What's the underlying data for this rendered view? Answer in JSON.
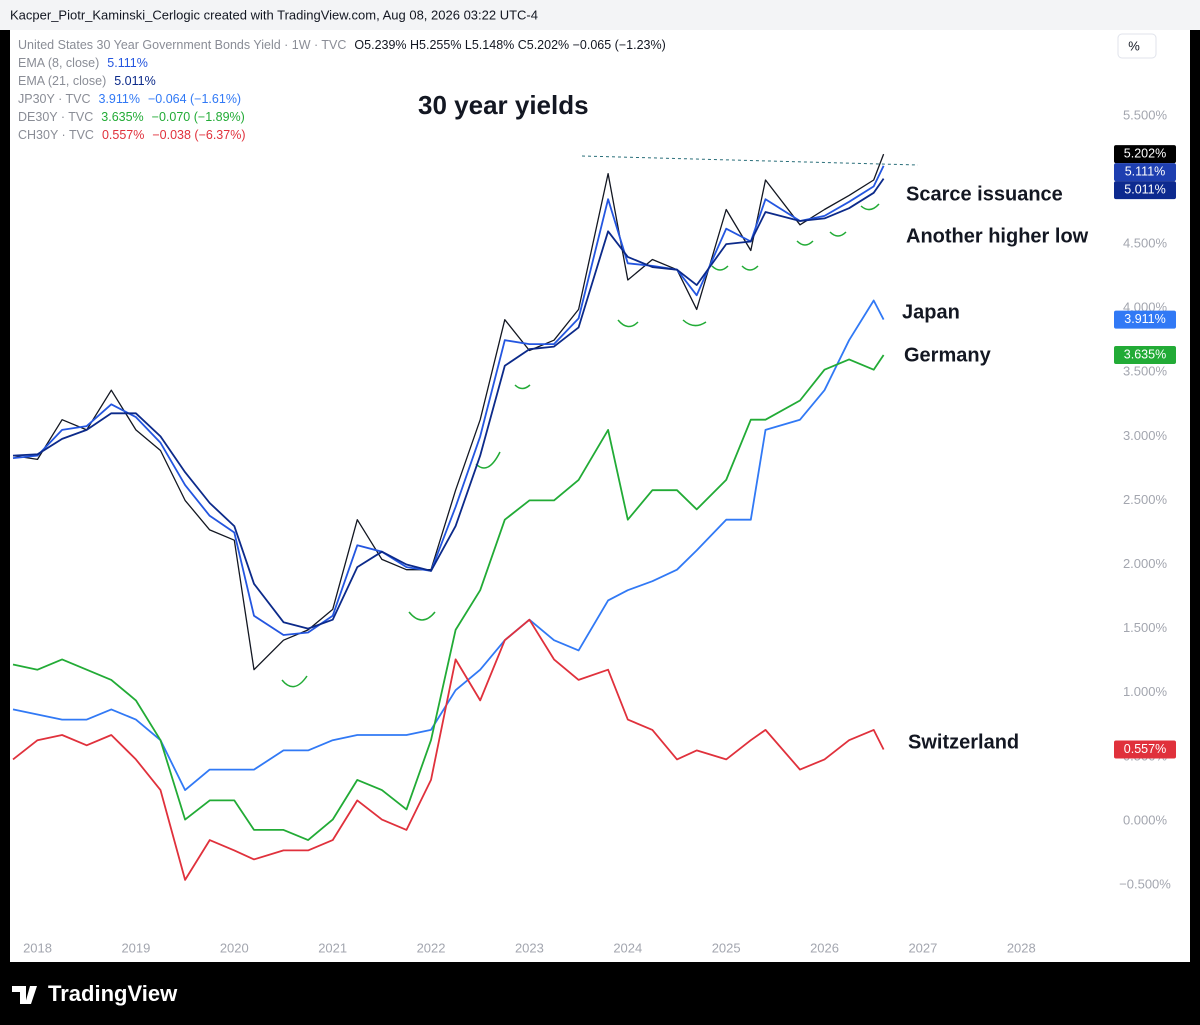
{
  "header": {
    "text": "Kacper_Piotr_Kaminski_Cerlogic created with TradingView.com, Aug 08, 2026 03:22 UTC-4"
  },
  "scale_button": "%",
  "footer": {
    "logo": "TradingView"
  },
  "chart_data": {
    "type": "line",
    "title": "30 year yields",
    "annotations": [
      "Scarce issuance",
      "Another higher low",
      "Japan",
      "Germany",
      "Switzerland"
    ],
    "x": [
      2017.75,
      2018.0,
      2018.25,
      2018.5,
      2018.75,
      2019.0,
      2019.25,
      2019.5,
      2019.75,
      2020.0,
      2020.2,
      2020.5,
      2020.75,
      2021.0,
      2021.25,
      2021.5,
      2021.75,
      2022.0,
      2022.25,
      2022.5,
      2022.75,
      2023.0,
      2023.25,
      2023.5,
      2023.8,
      2024.0,
      2024.25,
      2024.5,
      2024.7,
      2025.0,
      2025.25,
      2025.4,
      2025.75,
      2026.0,
      2026.25,
      2026.5,
      2026.6
    ],
    "xlim": [
      2017.72,
      2028.8
    ],
    "xticks": [
      2018,
      2019,
      2020,
      2021,
      2022,
      2023,
      2024,
      2025,
      2026,
      2027,
      2028
    ],
    "ylim": [
      -0.89,
      6.17
    ],
    "yticks": [
      {
        "value": -0.5,
        "label": "−0.500%"
      },
      {
        "value": 0,
        "label": "0.000%"
      },
      {
        "value": 0.5,
        "label": "0.500%"
      },
      {
        "value": 1,
        "label": "1.000%"
      },
      {
        "value": 1.5,
        "label": "1.500%"
      },
      {
        "value": 2,
        "label": "2.000%"
      },
      {
        "value": 2.5,
        "label": "2.500%"
      },
      {
        "value": 3,
        "label": "3.000%"
      },
      {
        "value": 3.5,
        "label": "3.500%"
      },
      {
        "value": 4,
        "label": "4.000%"
      },
      {
        "value": 4.5,
        "label": "4.500%"
      },
      {
        "value": 5.5,
        "label": "5.500%"
      }
    ],
    "grid": false,
    "series": [
      {
        "name": "United States 30 Year Government Bonds Yield · 1W · TVC",
        "color": "#131722",
        "badge_color": "#000000",
        "legend_detail": "O5.239%  H5.255%  L5.148%  C5.202%  −0.065 (−1.23%)",
        "values": [
          2.85,
          2.82,
          3.13,
          3.05,
          3.36,
          3.05,
          2.89,
          2.5,
          2.27,
          2.19,
          1.18,
          1.41,
          1.49,
          1.65,
          2.35,
          2.04,
          1.96,
          1.96,
          2.58,
          3.13,
          3.91,
          3.67,
          3.75,
          3.99,
          5.05,
          4.22,
          4.38,
          4.3,
          3.99,
          4.77,
          4.45,
          5.0,
          4.65,
          4.77,
          4.88,
          5.0,
          5.202
        ],
        "value_labels": [
          null,
          null,
          null,
          null,
          null,
          null,
          null,
          null,
          null,
          null,
          null,
          null,
          null,
          null,
          null,
          null,
          null,
          null,
          null,
          null,
          null,
          null,
          null,
          null,
          null,
          null,
          null,
          null,
          null,
          null,
          null,
          null,
          null,
          null,
          null,
          null,
          "5.202%"
        ]
      },
      {
        "name": "EMA (8, close)",
        "color": "#2456e0",
        "badge_color": "#1e3fb0",
        "values": [
          2.83,
          2.85,
          3.05,
          3.08,
          3.25,
          3.15,
          2.95,
          2.62,
          2.38,
          2.25,
          1.6,
          1.45,
          1.47,
          1.6,
          2.15,
          2.1,
          1.98,
          1.95,
          2.45,
          3.0,
          3.75,
          3.72,
          3.72,
          3.92,
          4.85,
          4.35,
          4.33,
          4.3,
          4.1,
          4.62,
          4.52,
          4.85,
          4.68,
          4.72,
          4.83,
          4.95,
          5.111
        ],
        "value_labels": [
          null,
          null,
          null,
          null,
          null,
          null,
          null,
          null,
          null,
          null,
          null,
          null,
          null,
          null,
          null,
          null,
          null,
          null,
          null,
          null,
          null,
          null,
          null,
          null,
          null,
          null,
          null,
          null,
          null,
          null,
          null,
          null,
          null,
          null,
          null,
          null,
          "5.111%"
        ]
      },
      {
        "name": "EMA (21, close)",
        "color": "#0c2a8a",
        "badge_color": "#0d2a8f",
        "values": [
          2.85,
          2.86,
          2.98,
          3.05,
          3.18,
          3.18,
          3.0,
          2.72,
          2.48,
          2.3,
          1.85,
          1.55,
          1.5,
          1.57,
          1.98,
          2.1,
          2.0,
          1.95,
          2.3,
          2.85,
          3.55,
          3.68,
          3.7,
          3.85,
          4.6,
          4.4,
          4.32,
          4.3,
          4.18,
          4.5,
          4.52,
          4.75,
          4.68,
          4.7,
          4.78,
          4.9,
          5.011
        ],
        "value_labels": [
          null,
          null,
          null,
          null,
          null,
          null,
          null,
          null,
          null,
          null,
          null,
          null,
          null,
          null,
          null,
          null,
          null,
          null,
          null,
          null,
          null,
          null,
          null,
          null,
          null,
          null,
          null,
          null,
          null,
          null,
          null,
          null,
          null,
          null,
          null,
          null,
          "5.011%"
        ]
      },
      {
        "name": "JP30Y · TVC",
        "color": "#3179f5",
        "badge_color": "#3179f5",
        "legend_detail": "−0.064 (−1.61%)",
        "values": [
          0.87,
          0.83,
          0.79,
          0.79,
          0.87,
          0.79,
          0.63,
          0.24,
          0.4,
          0.4,
          0.4,
          0.55,
          0.55,
          0.63,
          0.67,
          0.67,
          0.67,
          0.71,
          1.02,
          1.18,
          1.41,
          1.57,
          1.41,
          1.33,
          1.72,
          1.8,
          1.87,
          1.96,
          2.11,
          2.35,
          2.35,
          3.05,
          3.13,
          3.36,
          3.75,
          4.06,
          3.911
        ],
        "value_labels": [
          null,
          null,
          null,
          null,
          null,
          null,
          null,
          null,
          null,
          null,
          null,
          null,
          null,
          null,
          null,
          null,
          null,
          null,
          null,
          null,
          null,
          null,
          null,
          null,
          null,
          null,
          null,
          null,
          null,
          null,
          null,
          null,
          null,
          null,
          null,
          null,
          "3.911%"
        ]
      },
      {
        "name": "DE30Y · TVC",
        "color": "#22ab36",
        "badge_color": "#22ab36",
        "legend_detail": "−0.070 (−1.89%)",
        "values": [
          1.22,
          1.18,
          1.26,
          1.18,
          1.1,
          0.94,
          0.63,
          0.01,
          0.16,
          0.16,
          -0.07,
          -0.07,
          -0.15,
          0.01,
          0.32,
          0.24,
          0.09,
          0.63,
          1.49,
          1.8,
          2.35,
          2.5,
          2.5,
          2.66,
          3.05,
          2.35,
          2.58,
          2.58,
          2.43,
          2.66,
          3.13,
          3.13,
          3.28,
          3.52,
          3.6,
          3.52,
          3.635
        ],
        "value_labels": [
          null,
          null,
          null,
          null,
          null,
          null,
          null,
          null,
          null,
          null,
          null,
          null,
          null,
          null,
          null,
          null,
          null,
          null,
          null,
          null,
          null,
          null,
          null,
          null,
          null,
          null,
          null,
          null,
          null,
          null,
          null,
          null,
          null,
          null,
          null,
          null,
          "3.635%"
        ]
      },
      {
        "name": "CH30Y · TVC",
        "color": "#e0313c",
        "badge_color": "#e0313c",
        "legend_detail": "−0.038 (−6.37%)",
        "values": [
          0.48,
          0.63,
          0.67,
          0.59,
          0.67,
          0.48,
          0.24,
          -0.46,
          -0.15,
          -0.23,
          -0.3,
          -0.23,
          -0.23,
          -0.15,
          0.16,
          0.01,
          -0.07,
          0.32,
          1.26,
          0.94,
          1.41,
          1.57,
          1.26,
          1.1,
          1.18,
          0.79,
          0.71,
          0.48,
          0.55,
          0.48,
          0.63,
          0.71,
          0.4,
          0.48,
          0.63,
          0.71,
          0.557
        ],
        "value_labels": [
          null,
          null,
          null,
          null,
          null,
          null,
          null,
          null,
          null,
          null,
          null,
          null,
          null,
          null,
          null,
          null,
          null,
          null,
          null,
          null,
          null,
          null,
          null,
          null,
          null,
          null,
          null,
          null,
          null,
          null,
          null,
          null,
          null,
          null,
          null,
          null,
          "0.557%"
        ]
      }
    ]
  }
}
